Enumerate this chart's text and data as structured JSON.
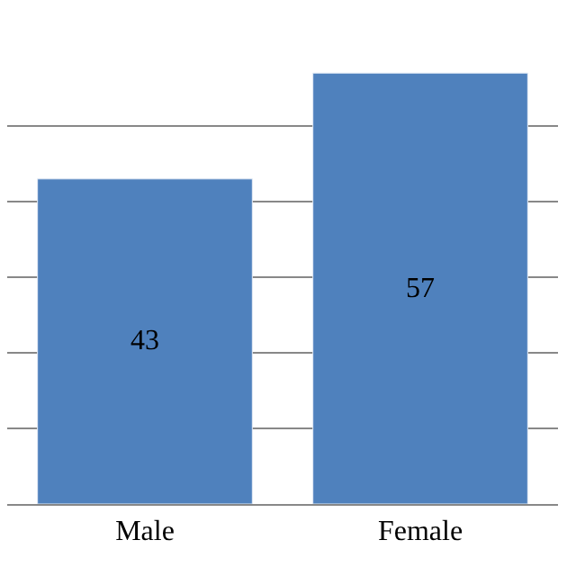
{
  "chart_data": {
    "type": "bar",
    "categories": [
      "Male",
      "Female"
    ],
    "values": [
      43,
      57
    ],
    "color": "#4f81bd",
    "data_labels": true,
    "grid": "y",
    "tick_labels": "x"
  }
}
